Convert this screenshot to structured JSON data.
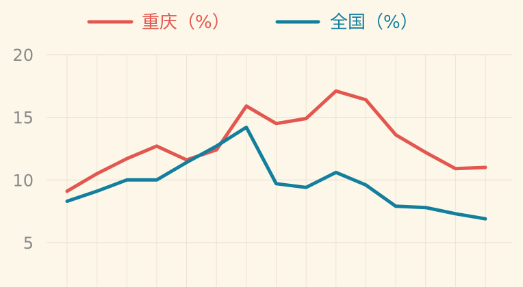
{
  "chart_data": {
    "type": "line",
    "x": [
      1,
      2,
      3,
      4,
      5,
      6,
      7,
      8,
      9,
      10,
      11,
      12,
      13,
      14,
      15
    ],
    "series": [
      {
        "name": "重庆（%）",
        "color": "#e2574f",
        "values": [
          9.1,
          10.5,
          11.7,
          12.7,
          11.6,
          12.4,
          15.9,
          14.5,
          14.9,
          17.1,
          16.4,
          13.6,
          12.2,
          10.9,
          11.0
        ]
      },
      {
        "name": "全国（%）",
        "color": "#137f9e",
        "values": [
          8.3,
          9.1,
          10.0,
          10.0,
          11.4,
          12.7,
          14.2,
          9.7,
          9.4,
          10.6,
          9.6,
          7.9,
          7.8,
          7.3,
          6.9
        ]
      }
    ],
    "y_ticks": [
      "20",
      "15",
      "10",
      "5"
    ],
    "ylim": [
      3.5,
      21.2
    ],
    "grid": true,
    "legend": "top"
  }
}
